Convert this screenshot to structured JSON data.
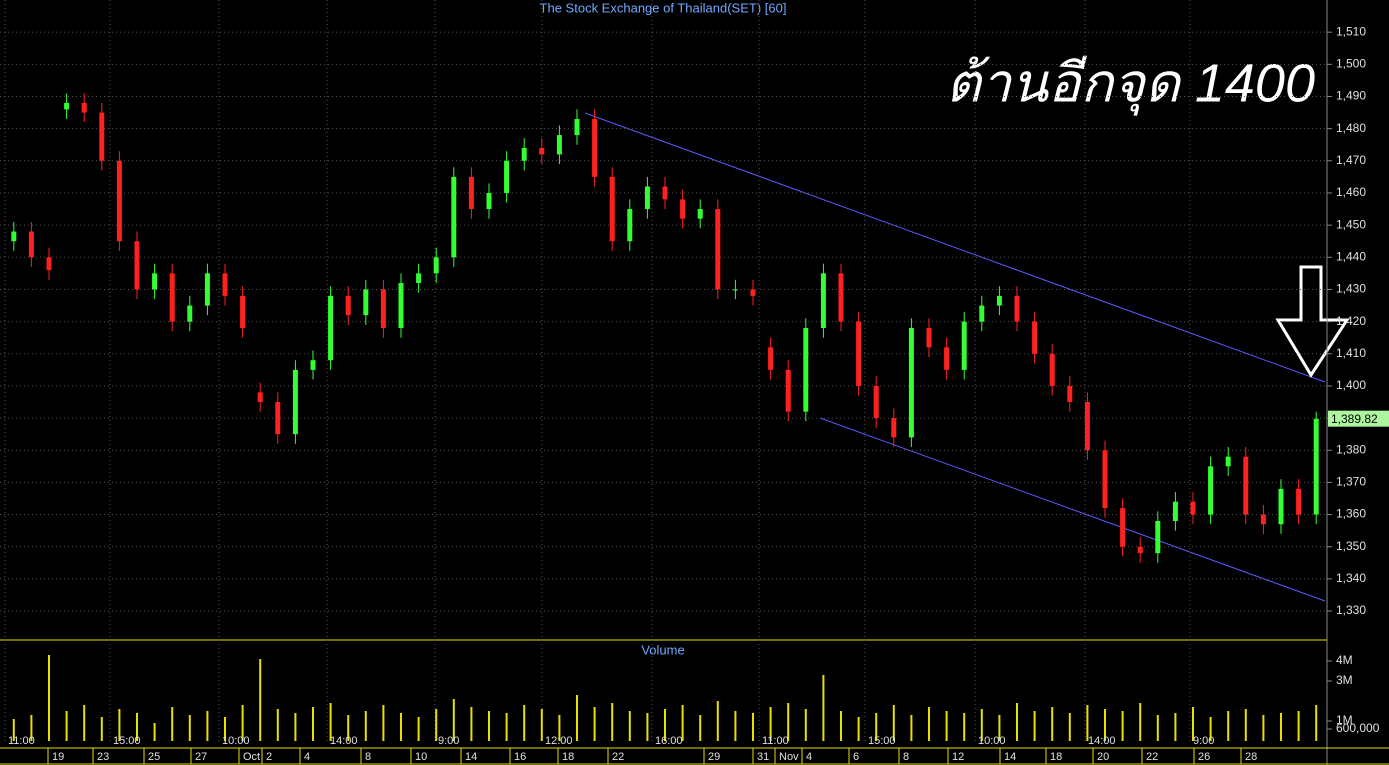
{
  "chart_data": [
    {
      "type": "candlestick",
      "title": "The Stock Exchange of Thailand(SET) [60]",
      "annotation": "ต้านอีกจุด 1400",
      "last_value_label": "1,389.82",
      "up_color": "#33ff33",
      "down_color": "#ff2020",
      "grid": true,
      "ylim": [
        1321,
        1520
      ],
      "yticks": [
        {
          "value": 1330,
          "label": "1,330"
        },
        {
          "value": 1340,
          "label": "1,340"
        },
        {
          "value": 1350,
          "label": "1,350"
        },
        {
          "value": 1360,
          "label": "1,360"
        },
        {
          "value": 1370,
          "label": "1,370"
        },
        {
          "value": 1380,
          "label": "1,380"
        },
        {
          "value": 1390,
          "label": "1,390"
        },
        {
          "value": 1400,
          "label": "1,400"
        },
        {
          "value": 1410,
          "label": "1,410"
        },
        {
          "value": 1420,
          "label": "1,420"
        },
        {
          "value": 1430,
          "label": "1,430"
        },
        {
          "value": 1440,
          "label": "1,440"
        },
        {
          "value": 1450,
          "label": "1,450"
        },
        {
          "value": 1460,
          "label": "1,460"
        },
        {
          "value": 1470,
          "label": "1,470"
        },
        {
          "value": 1480,
          "label": "1,480"
        },
        {
          "value": 1490,
          "label": "1,490"
        },
        {
          "value": 1500,
          "label": "1,500"
        },
        {
          "value": 1510,
          "label": "1,510"
        }
      ],
      "open": [
        1445,
        1448,
        1440,
        1486,
        1488,
        1485,
        1470,
        1445,
        1430,
        1435,
        1420,
        1425,
        1435,
        1428,
        1398,
        1395,
        1385,
        1405,
        1408,
        1428,
        1422,
        1430,
        1418,
        1432,
        1435,
        1440,
        1465,
        1455,
        1460,
        1470,
        1474,
        1472,
        1478,
        1483,
        1465,
        1445,
        1455,
        1462,
        1458,
        1452,
        1455,
        1430,
        1430,
        1412,
        1405,
        1392,
        1418,
        1435,
        1420,
        1400,
        1390,
        1384,
        1418,
        1412,
        1405,
        1420,
        1425,
        1428,
        1420,
        1410,
        1400,
        1395,
        1380,
        1362,
        1350,
        1348,
        1358,
        1364,
        1360,
        1375,
        1378,
        1360,
        1357,
        1368,
        1360
      ],
      "high": [
        1451,
        1451,
        1443,
        1491,
        1491,
        1488,
        1473,
        1448,
        1438,
        1438,
        1428,
        1438,
        1438,
        1431,
        1401,
        1398,
        1408,
        1411,
        1431,
        1431,
        1433,
        1433,
        1435,
        1438,
        1443,
        1468,
        1468,
        1463,
        1473,
        1477,
        1477,
        1481,
        1486,
        1486,
        1468,
        1458,
        1465,
        1465,
        1461,
        1458,
        1458,
        1433,
        1433,
        1415,
        1408,
        1421,
        1438,
        1438,
        1423,
        1403,
        1393,
        1421,
        1421,
        1415,
        1423,
        1428,
        1431,
        1431,
        1423,
        1413,
        1403,
        1398,
        1383,
        1365,
        1353,
        1361,
        1367,
        1367,
        1378,
        1381,
        1381,
        1363,
        1371,
        1371,
        1392
      ],
      "low": [
        1442,
        1437,
        1433,
        1483,
        1482,
        1467,
        1442,
        1427,
        1427,
        1417,
        1417,
        1422,
        1425,
        1415,
        1392,
        1382,
        1382,
        1402,
        1405,
        1419,
        1419,
        1415,
        1415,
        1429,
        1432,
        1437,
        1452,
        1452,
        1457,
        1467,
        1469,
        1469,
        1475,
        1462,
        1442,
        1442,
        1452,
        1455,
        1449,
        1449,
        1427,
        1427,
        1425,
        1402,
        1389,
        1389,
        1415,
        1417,
        1397,
        1387,
        1381,
        1381,
        1409,
        1402,
        1402,
        1417,
        1422,
        1417,
        1407,
        1397,
        1392,
        1377,
        1359,
        1347,
        1345,
        1345,
        1355,
        1357,
        1357,
        1372,
        1357,
        1354,
        1354,
        1357,
        1357
      ],
      "close": [
        1448,
        1440,
        1436,
        1488,
        1485,
        1470,
        1445,
        1430,
        1435,
        1420,
        1425,
        1435,
        1428,
        1418,
        1395,
        1385,
        1405,
        1408,
        1428,
        1422,
        1430,
        1418,
        1432,
        1435,
        1440,
        1465,
        1455,
        1460,
        1470,
        1474,
        1472,
        1478,
        1483,
        1465,
        1445,
        1455,
        1462,
        1458,
        1452,
        1455,
        1430,
        1430,
        1428,
        1405,
        1392,
        1418,
        1435,
        1420,
        1400,
        1390,
        1384,
        1418,
        1412,
        1405,
        1420,
        1425,
        1428,
        1420,
        1410,
        1400,
        1395,
        1380,
        1362,
        1350,
        1348,
        1358,
        1364,
        1360,
        1375,
        1378,
        1360,
        1357,
        1368,
        1360,
        1389.82
      ]
    },
    {
      "type": "bar",
      "title": "Volume",
      "color": "#e8e000",
      "ylim": [
        0,
        5000000
      ],
      "yticks": [
        {
          "value": 4000000,
          "label": "4M"
        },
        {
          "value": 3000000,
          "label": "3M"
        },
        {
          "value": 1000000,
          "label": "1M"
        },
        {
          "value": 600000,
          "label": "600,000"
        }
      ],
      "values": [
        1100000,
        1300000,
        4300000,
        1500000,
        1800000,
        1200000,
        1600000,
        1400000,
        900000,
        1700000,
        1300000,
        1500000,
        1200000,
        1800000,
        4100000,
        1600000,
        1400000,
        1700000,
        1900000,
        1300000,
        1500000,
        1800000,
        1400000,
        1200000,
        1600000,
        2100000,
        1700000,
        1500000,
        1400000,
        1800000,
        1600000,
        1300000,
        2300000,
        1700000,
        1900000,
        1500000,
        1400000,
        1600000,
        1800000,
        1300000,
        2000000,
        1500000,
        1400000,
        1700000,
        1900000,
        1600000,
        3300000,
        1500000,
        1200000,
        1400000,
        1800000,
        1300000,
        1700000,
        1500000,
        1400000,
        1600000,
        1300000,
        1900000,
        1500000,
        1700000,
        1400000,
        1800000,
        1600000,
        1500000,
        1900000,
        1300000,
        1400000,
        1700000,
        1200000,
        1500000,
        1600000,
        1300000,
        1400000,
        1500000,
        1800000
      ]
    }
  ],
  "x_axis": {
    "time_labels": [
      "11:00",
      "15:00",
      "10:00",
      "14:00",
      "9:00",
      "12:00",
      "16:00",
      "11:00",
      "15:00",
      "10:00",
      "14:00",
      "9:00"
    ],
    "date_labels": [
      "19",
      "23",
      "25",
      "27",
      "Oct",
      "2",
      "4",
      "8",
      "10",
      "14",
      "16",
      "18",
      "22",
      "29",
      "31",
      "Nov",
      "4",
      "6",
      "8",
      "12",
      "14",
      "18",
      "20",
      "22",
      "26",
      "28"
    ]
  }
}
